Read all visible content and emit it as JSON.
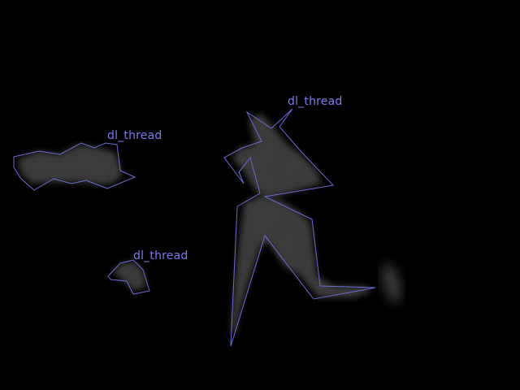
{
  "colors": {
    "background": "#000000",
    "blob_fill": "#3a3a3a",
    "outline": "#6b6bd6",
    "label_text": "#7a7aee"
  },
  "regions": [
    {
      "label": "dl_thread"
    },
    {
      "label": "dl_thread"
    },
    {
      "label": "dl_thread"
    }
  ]
}
